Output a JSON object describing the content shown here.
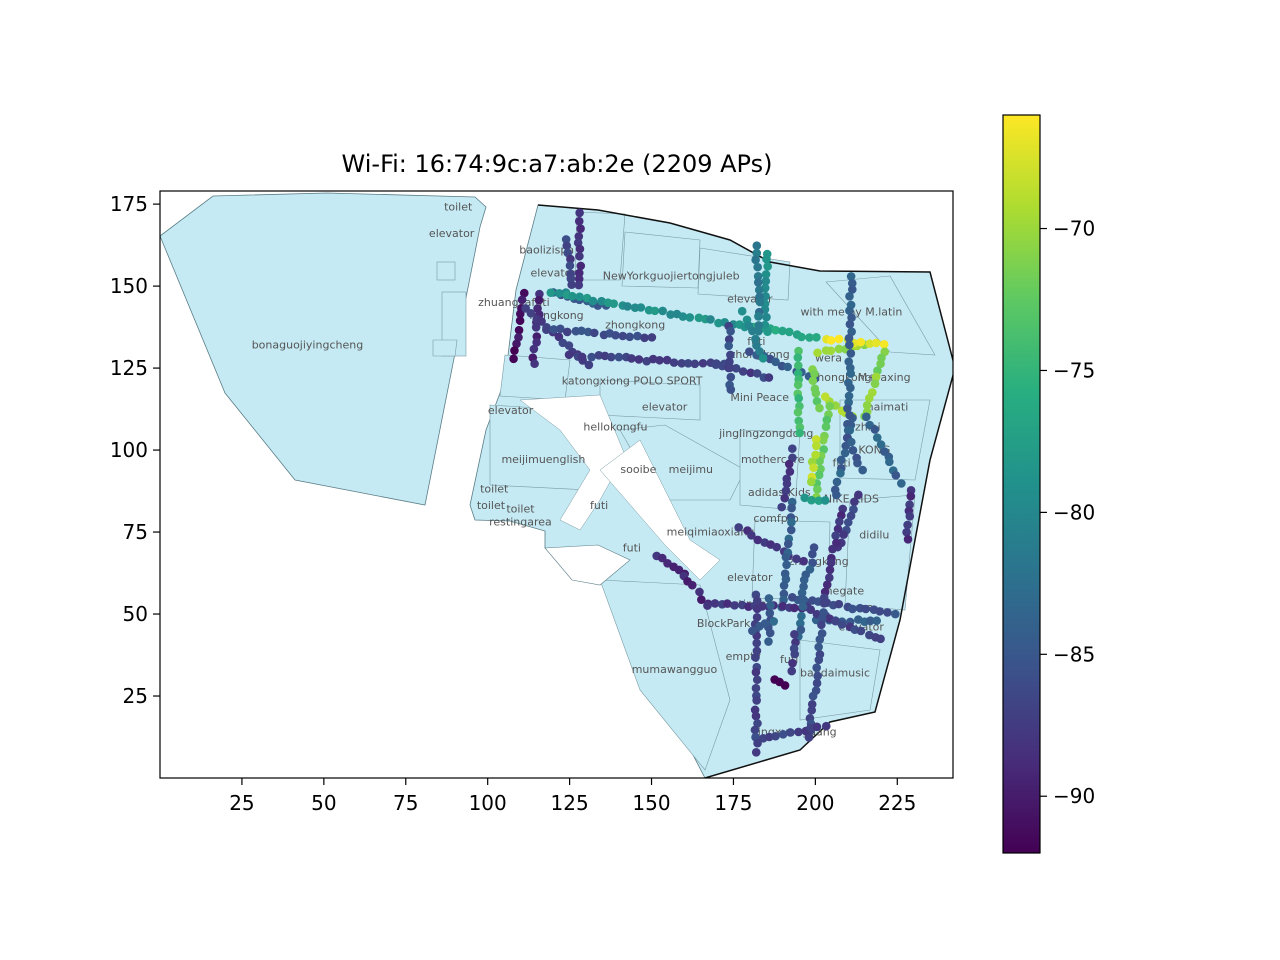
{
  "chart_data": {
    "type": "scatter",
    "title": "Wi-Fi: 16:74:9c:a7:ab:2e (2209 APs)",
    "xlabel": "",
    "ylabel": "",
    "xlim": [
      0,
      242
    ],
    "ylim": [
      0,
      179
    ],
    "xticks": [
      25,
      50,
      75,
      100,
      125,
      150,
      175,
      200,
      225
    ],
    "yticks": [
      25,
      50,
      75,
      100,
      125,
      150,
      175
    ],
    "grid": false,
    "colorbar": {
      "colormap": "viridis",
      "min": -92,
      "max": -66,
      "ticks": [
        -70,
        -75,
        -80,
        -85,
        -90
      ],
      "tick_labels": [
        "−70",
        "−75",
        "−80",
        "−85",
        "−90"
      ]
    },
    "map_labels": [
      {
        "text": "toilet",
        "x": 91,
        "y": 173
      },
      {
        "text": "elevator",
        "x": 89,
        "y": 165
      },
      {
        "text": "bonaguojiyingcheng",
        "x": 45,
        "y": 131
      },
      {
        "text": "baolizispa",
        "x": 118,
        "y": 160
      },
      {
        "text": "elevator",
        "x": 120,
        "y": 153
      },
      {
        "text": "NewYorkguojiertongjuleb",
        "x": 156,
        "y": 152
      },
      {
        "text": "elevator",
        "x": 180,
        "y": 145
      },
      {
        "text": "zhuangjiafuti",
        "x": 108,
        "y": 144
      },
      {
        "text": "hongkong",
        "x": 121,
        "y": 140
      },
      {
        "text": "zhongkong",
        "x": 145,
        "y": 137
      },
      {
        "text": "with me by M.latin",
        "x": 211,
        "y": 141
      },
      {
        "text": "futi",
        "x": 182,
        "y": 132
      },
      {
        "text": "zhongkong",
        "x": 183,
        "y": 128
      },
      {
        "text": "wera",
        "x": 204,
        "y": 127
      },
      {
        "text": "katongxiong",
        "x": 133,
        "y": 120
      },
      {
        "text": "POLO SPORT",
        "x": 155,
        "y": 120
      },
      {
        "text": "zhongkong",
        "x": 208,
        "y": 121
      },
      {
        "text": "M+faxing",
        "x": 221,
        "y": 121
      },
      {
        "text": "elevator",
        "x": 107,
        "y": 111
      },
      {
        "text": "elevator",
        "x": 154,
        "y": 112
      },
      {
        "text": "Mini Peace",
        "x": 183,
        "y": 115
      },
      {
        "text": "haimati",
        "x": 222,
        "y": 112
      },
      {
        "text": "hellokongfu",
        "x": 139,
        "y": 106
      },
      {
        "text": "jinglingzongdong",
        "x": 185,
        "y": 104
      },
      {
        "text": "zhiai",
        "x": 216,
        "y": 106
      },
      {
        "text": "meijimuenglish",
        "x": 117,
        "y": 96
      },
      {
        "text": "mothercare",
        "x": 187,
        "y": 96
      },
      {
        "text": "futi",
        "x": 208,
        "y": 95
      },
      {
        "text": "KONG",
        "x": 218,
        "y": 99
      },
      {
        "text": "sooibe",
        "x": 146,
        "y": 93
      },
      {
        "text": "meijimu",
        "x": 162,
        "y": 93
      },
      {
        "text": "toilet",
        "x": 102,
        "y": 87
      },
      {
        "text": "adidas Kids",
        "x": 189,
        "y": 86
      },
      {
        "text": "NIKE KIDS",
        "x": 211,
        "y": 84
      },
      {
        "text": "toilet",
        "x": 101,
        "y": 82
      },
      {
        "text": "futi",
        "x": 134,
        "y": 82
      },
      {
        "text": "toilet",
        "x": 110,
        "y": 81
      },
      {
        "text": "restingarea",
        "x": 110,
        "y": 77
      },
      {
        "text": "comfpro",
        "x": 188,
        "y": 78
      },
      {
        "text": "didilu",
        "x": 218,
        "y": 73
      },
      {
        "text": "meiqimiaoxiang",
        "x": 168,
        "y": 74
      },
      {
        "text": "futi",
        "x": 144,
        "y": 69
      },
      {
        "text": "zhongkong",
        "x": 201,
        "y": 65
      },
      {
        "text": "elevator",
        "x": 180,
        "y": 60
      },
      {
        "text": "negate",
        "x": 209,
        "y": 56
      },
      {
        "text": "restingarea",
        "x": 181,
        "y": 52
      },
      {
        "text": "area",
        "x": 214,
        "y": 51
      },
      {
        "text": "BlockPark",
        "x": 172,
        "y": 46
      },
      {
        "text": "elevator",
        "x": 214,
        "y": 45
      },
      {
        "text": "empty",
        "x": 178,
        "y": 36
      },
      {
        "text": "futi",
        "x": 192,
        "y": 35
      },
      {
        "text": "mumawangguo",
        "x": 157,
        "y": 32
      },
      {
        "text": "bandaimusic",
        "x": 206,
        "y": 31
      },
      {
        "text": "jingxuanguang",
        "x": 194,
        "y": 13
      }
    ],
    "series": [
      {
        "segments": [
          {
            "from": [
              128,
              172
            ],
            "to": [
              128,
              150
            ],
            "rssi": -88
          },
          {
            "from": [
              124,
              164
            ],
            "to": [
              126,
              150
            ],
            "rssi": -87
          },
          {
            "from": [
              111,
              148
            ],
            "to": [
              108,
              128
            ],
            "rssi": -91
          },
          {
            "from": [
              116,
              148
            ],
            "to": [
              114,
              126
            ],
            "rssi": -89
          },
          {
            "from": [
              112,
              143
            ],
            "to": [
              131,
              126
            ],
            "rssi": -87
          },
          {
            "from": [
              120,
              148
            ],
            "to": [
              136,
              144
            ],
            "rssi": -85
          },
          {
            "from": [
              119,
              148
            ],
            "to": [
              124,
              148
            ],
            "rssi": -79
          },
          {
            "from": [
              124,
              147
            ],
            "to": [
              183,
              137
            ],
            "rssi": -79
          },
          {
            "from": [
              118,
              137
            ],
            "to": [
              150,
              134
            ],
            "rssi": -86
          },
          {
            "from": [
              125,
              129
            ],
            "to": [
              172,
              126
            ],
            "rssi": -87
          },
          {
            "from": [
              170,
              126
            ],
            "to": [
              186,
              122
            ],
            "rssi": -87
          },
          {
            "from": [
              182,
              138
            ],
            "to": [
              200,
              134
            ],
            "rssi": -76
          },
          {
            "from": [
              174,
              138
            ],
            "to": [
              174,
              118
            ],
            "rssi": -86
          },
          {
            "from": [
              180,
              130
            ],
            "to": [
              200,
              122
            ],
            "rssi": -85
          },
          {
            "from": [
              185,
              160
            ],
            "to": [
              185,
              136
            ],
            "rssi": -79
          },
          {
            "from": [
              182,
              162
            ],
            "to": [
              183,
              136
            ],
            "rssi": -82
          },
          {
            "from": [
              178,
              142
            ],
            "to": [
              184,
              128
            ],
            "rssi": -80
          },
          {
            "from": [
              195,
              130
            ],
            "to": [
              195,
              105
            ],
            "rssi": -74
          },
          {
            "from": [
              199,
              125
            ],
            "to": [
              201,
              113
            ],
            "rssi": -72
          },
          {
            "from": [
              201,
              130
            ],
            "to": [
              215,
              132
            ],
            "rssi": -70
          },
          {
            "from": [
              203,
              134
            ],
            "to": [
              221,
              132
            ],
            "rssi": -67
          },
          {
            "from": [
              221,
              130
            ],
            "to": [
              215,
              110
            ],
            "rssi": -71
          },
          {
            "from": [
              211,
              110
            ],
            "to": [
              203,
              116
            ],
            "rssi": -69
          },
          {
            "from": [
              204,
              113
            ],
            "to": [
              200,
              86
            ],
            "rssi": -72
          },
          {
            "from": [
              200,
              103
            ],
            "to": [
              199,
              90
            ],
            "rssi": -69
          },
          {
            "from": [
              216,
              110
            ],
            "to": [
              226,
              90
            ],
            "rssi": -84
          },
          {
            "from": [
              211,
              110
            ],
            "to": [
              206,
              86
            ],
            "rssi": -84
          },
          {
            "from": [
              197,
              85
            ],
            "to": [
              203,
              85
            ],
            "rssi": -78
          },
          {
            "from": [
              193,
              100
            ],
            "to": [
              190,
              83
            ],
            "rssi": -88
          },
          {
            "from": [
              211,
              153
            ],
            "to": [
              210,
              106
            ],
            "rssi": -84
          },
          {
            "from": [
              210,
              104
            ],
            "to": [
              214,
              94
            ],
            "rssi": -85
          },
          {
            "from": [
              229,
              88
            ],
            "to": [
              228,
              73
            ],
            "rssi": -88
          },
          {
            "from": [
              213,
              86
            ],
            "to": [
              207,
              70
            ],
            "rssi": -87
          },
          {
            "from": [
              208,
              82
            ],
            "to": [
              203,
              55
            ],
            "rssi": -88
          },
          {
            "from": [
              200,
              70
            ],
            "to": [
              195,
              54
            ],
            "rssi": -85
          },
          {
            "from": [
              177,
              76
            ],
            "to": [
              196,
              66
            ],
            "rssi": -88
          },
          {
            "from": [
              193,
              84
            ],
            "to": [
              190,
              52
            ],
            "rssi": -84
          },
          {
            "from": [
              193,
              55
            ],
            "to": [
              224,
              50
            ],
            "rssi": -86
          },
          {
            "from": [
              200,
              48
            ],
            "to": [
              219,
              48
            ],
            "rssi": -84
          },
          {
            "from": [
              197,
              52
            ],
            "to": [
              220,
              42
            ],
            "rssi": -87
          },
          {
            "from": [
              152,
              68
            ],
            "to": [
              160,
              62
            ],
            "rssi": -89
          },
          {
            "from": [
              160,
              62
            ],
            "to": [
              167,
              53
            ],
            "rssi": -89
          },
          {
            "from": [
              167,
              53
            ],
            "to": [
              198,
              52
            ],
            "rssi": -88
          },
          {
            "from": [
              182,
              56
            ],
            "to": [
              182,
              8
            ],
            "rssi": -87
          },
          {
            "from": [
              186,
              55
            ],
            "to": [
              186,
              42
            ],
            "rssi": -85
          },
          {
            "from": [
              187,
              48
            ],
            "to": [
              181,
              45
            ],
            "rssi": -84
          },
          {
            "from": [
              196,
              54
            ],
            "to": [
              195,
              43
            ],
            "rssi": -84
          },
          {
            "from": [
              194,
              44
            ],
            "to": [
              193,
              33
            ],
            "rssi": -87
          },
          {
            "from": [
              203,
              53
            ],
            "to": [
              198,
              12
            ],
            "rssi": -86
          },
          {
            "from": [
              184,
              12
            ],
            "to": [
              203,
              16
            ],
            "rssi": -87
          },
          {
            "from": [
              188,
              30
            ],
            "to": [
              191,
              28
            ],
            "rssi": -92
          }
        ]
      }
    ]
  }
}
